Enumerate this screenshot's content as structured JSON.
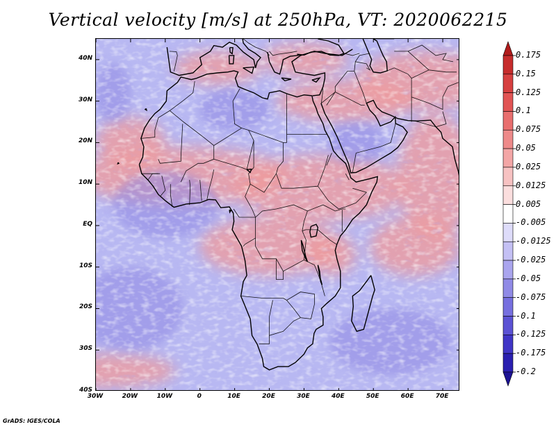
{
  "title": "Vertical velocity [m/s] at 250hPa, VT: 2020062215",
  "map": {
    "region": "Africa",
    "projection": "latlon",
    "lon_range": [
      "30W",
      "75E"
    ],
    "lat_range": [
      "40S",
      "45N"
    ],
    "lat_labels": [
      "40N",
      "30N",
      "20N",
      "10N",
      "EQ",
      "10S",
      "20S",
      "30S",
      "40S"
    ],
    "lon_labels": [
      "30W",
      "20W",
      "10W",
      "0",
      "10E",
      "20E",
      "30E",
      "40E",
      "50E",
      "60E",
      "70E"
    ]
  },
  "colorbar": {
    "labels": [
      "0.175",
      "0.15",
      "0.125",
      "0.1",
      "0.075",
      "0.05",
      "0.025",
      "0.0125",
      "0.005",
      "-0.005",
      "-0.0125",
      "-0.025",
      "-0.05",
      "-0.075",
      "-0.1",
      "-0.125",
      "-0.175",
      "-0.2"
    ],
    "colors": [
      "#b11b1b",
      "#c62c2c",
      "#d64040",
      "#e15454",
      "#e86e6e",
      "#ee8a8a",
      "#f3a6a6",
      "#f7c2c2",
      "#fbdede",
      "#ffffff",
      "#dedcfa",
      "#c4c0f4",
      "#aaa5ee",
      "#908ae6",
      "#766fdf",
      "#5b52d4",
      "#4035c6",
      "#2a1fb0",
      "#1c1395"
    ]
  },
  "footer": "GrADS: IGES/COLA"
}
